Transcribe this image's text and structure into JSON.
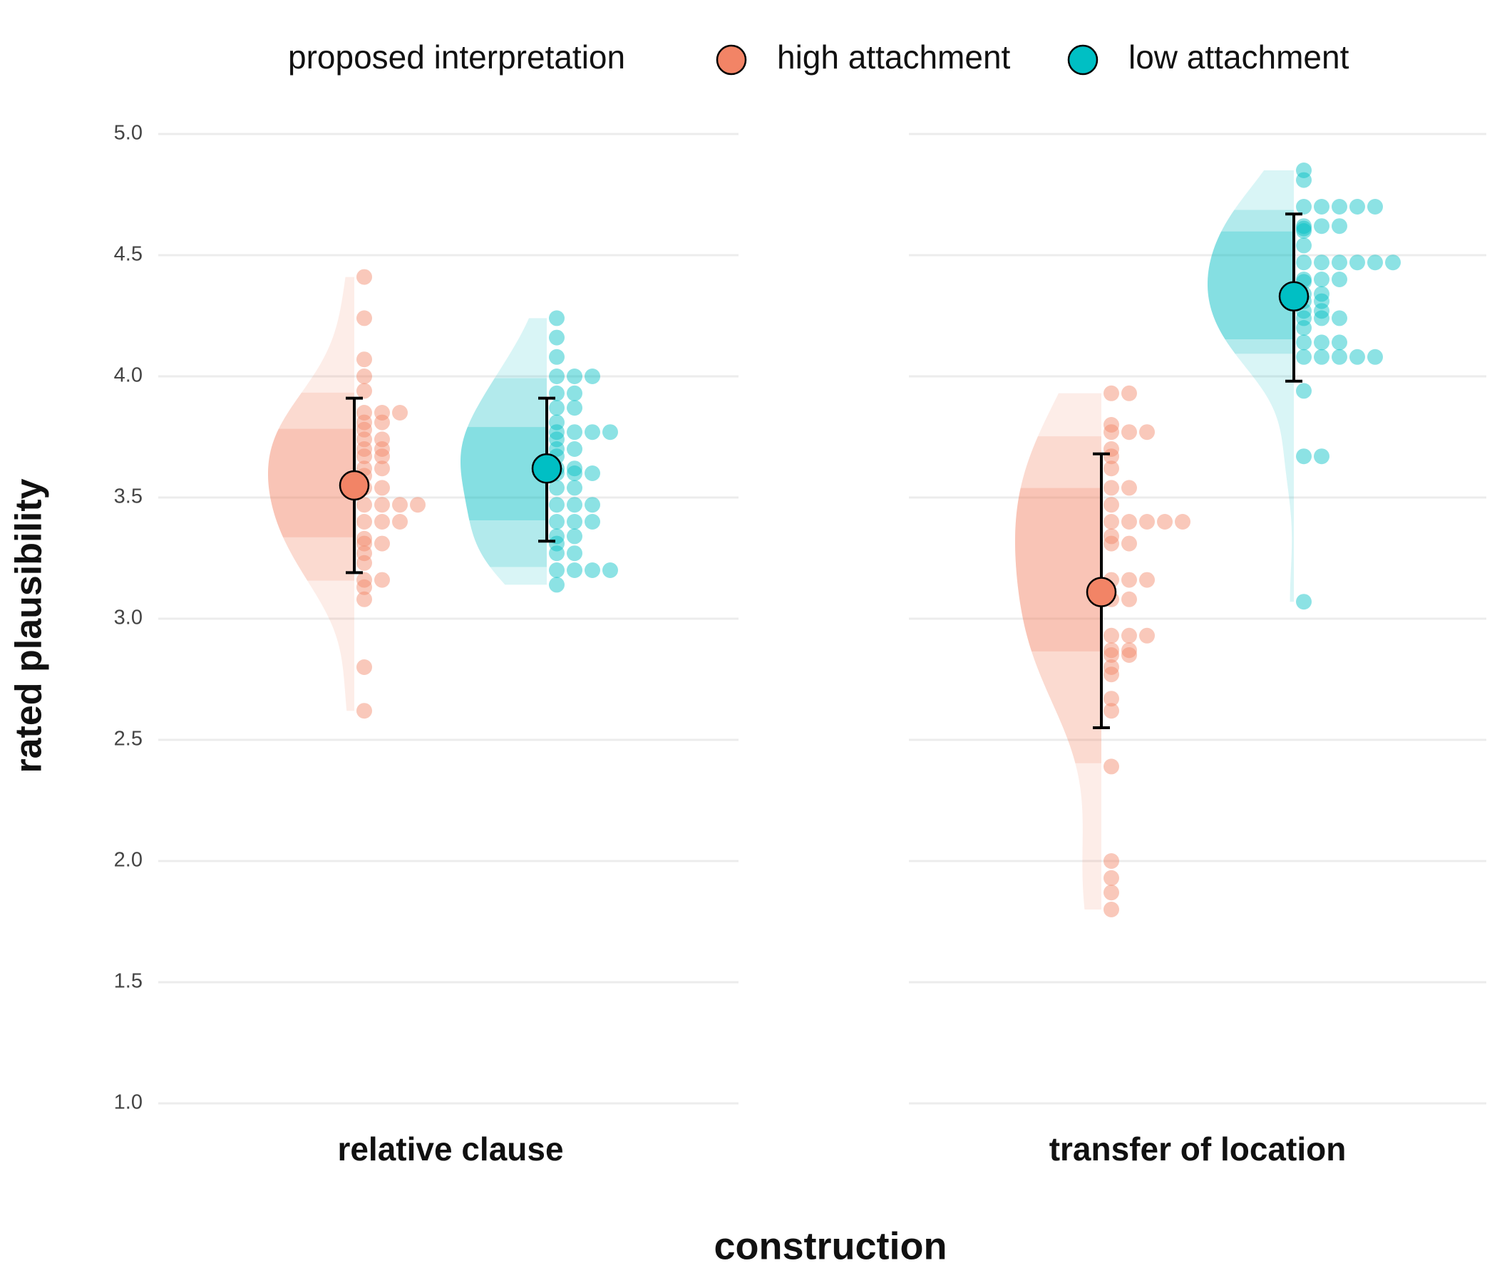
{
  "chart_data": {
    "type": "raincloud",
    "x_label": "construction",
    "y_label": "rated plausibility",
    "legend_title": "proposed interpretation",
    "legend_position": "top",
    "categories": [
      "relative clause",
      "transfer of location"
    ],
    "ylim": [
      1,
      5
    ],
    "yticks": [
      {
        "value": 1,
        "label": "1.0"
      },
      1.5,
      {
        "value": 2,
        "label": "2.0"
      },
      2.5,
      {
        "value": 3,
        "label": "3.0"
      },
      3.5,
      {
        "value": 4,
        "label": "4.0"
      },
      4.5,
      {
        "value": 5,
        "label": "5.0"
      }
    ],
    "grid": true,
    "series": [
      {
        "name": "high attachment",
        "color": "#F28466",
        "mean": [
          3.55,
          3.11
        ],
        "lower": [
          3.19,
          2.55
        ],
        "upper": [
          3.91,
          3.68
        ],
        "values": [
          [
            4.41,
            4.24,
            4.07,
            4.0,
            3.94,
            3.85,
            3.85,
            3.85,
            3.81,
            3.81,
            3.78,
            3.74,
            3.74,
            3.7,
            3.7,
            3.67,
            3.67,
            3.62,
            3.62,
            3.59,
            3.54,
            3.54,
            3.47,
            3.47,
            3.47,
            3.47,
            3.4,
            3.4,
            3.4,
            3.33,
            3.31,
            3.31,
            3.27,
            3.23,
            3.16,
            3.16,
            3.13,
            3.08,
            2.8,
            2.62
          ],
          [
            3.93,
            3.93,
            3.8,
            3.77,
            3.77,
            3.77,
            3.7,
            3.67,
            3.62,
            3.54,
            3.54,
            3.47,
            3.4,
            3.4,
            3.4,
            3.4,
            3.4,
            3.34,
            3.31,
            3.31,
            3.16,
            3.16,
            3.16,
            3.08,
            3.08,
            2.93,
            2.93,
            2.93,
            2.87,
            2.87,
            2.85,
            2.85,
            2.8,
            2.77,
            2.67,
            2.62,
            2.39,
            2.0,
            1.93,
            1.87,
            1.8
          ]
        ]
      },
      {
        "name": "low attachment",
        "color": "#00BFC4",
        "mean": [
          3.62,
          4.33
        ],
        "lower": [
          3.32,
          3.98
        ],
        "upper": [
          3.91,
          4.67
        ],
        "values": [
          [
            4.24,
            4.16,
            4.08,
            4.0,
            4.0,
            4.0,
            3.93,
            3.93,
            3.87,
            3.87,
            3.81,
            3.77,
            3.77,
            3.77,
            3.77,
            3.74,
            3.7,
            3.7,
            3.67,
            3.62,
            3.62,
            3.6,
            3.6,
            3.6,
            3.54,
            3.54,
            3.47,
            3.47,
            3.47,
            3.4,
            3.4,
            3.4,
            3.34,
            3.34,
            3.31,
            3.27,
            3.27,
            3.2,
            3.2,
            3.2,
            3.2,
            3.14
          ],
          [
            4.85,
            4.81,
            4.7,
            4.7,
            4.7,
            4.7,
            4.7,
            4.62,
            4.62,
            4.61,
            4.62,
            4.6,
            4.54,
            4.47,
            4.47,
            4.47,
            4.47,
            4.47,
            4.47,
            4.4,
            4.4,
            4.4,
            4.39,
            4.34,
            4.34,
            4.31,
            4.31,
            4.27,
            4.27,
            4.24,
            4.24,
            4.24,
            4.2,
            4.14,
            4.14,
            4.14,
            4.08,
            4.08,
            4.08,
            4.08,
            4.08,
            3.94,
            3.67,
            3.67,
            3.07
          ]
        ]
      }
    ]
  }
}
